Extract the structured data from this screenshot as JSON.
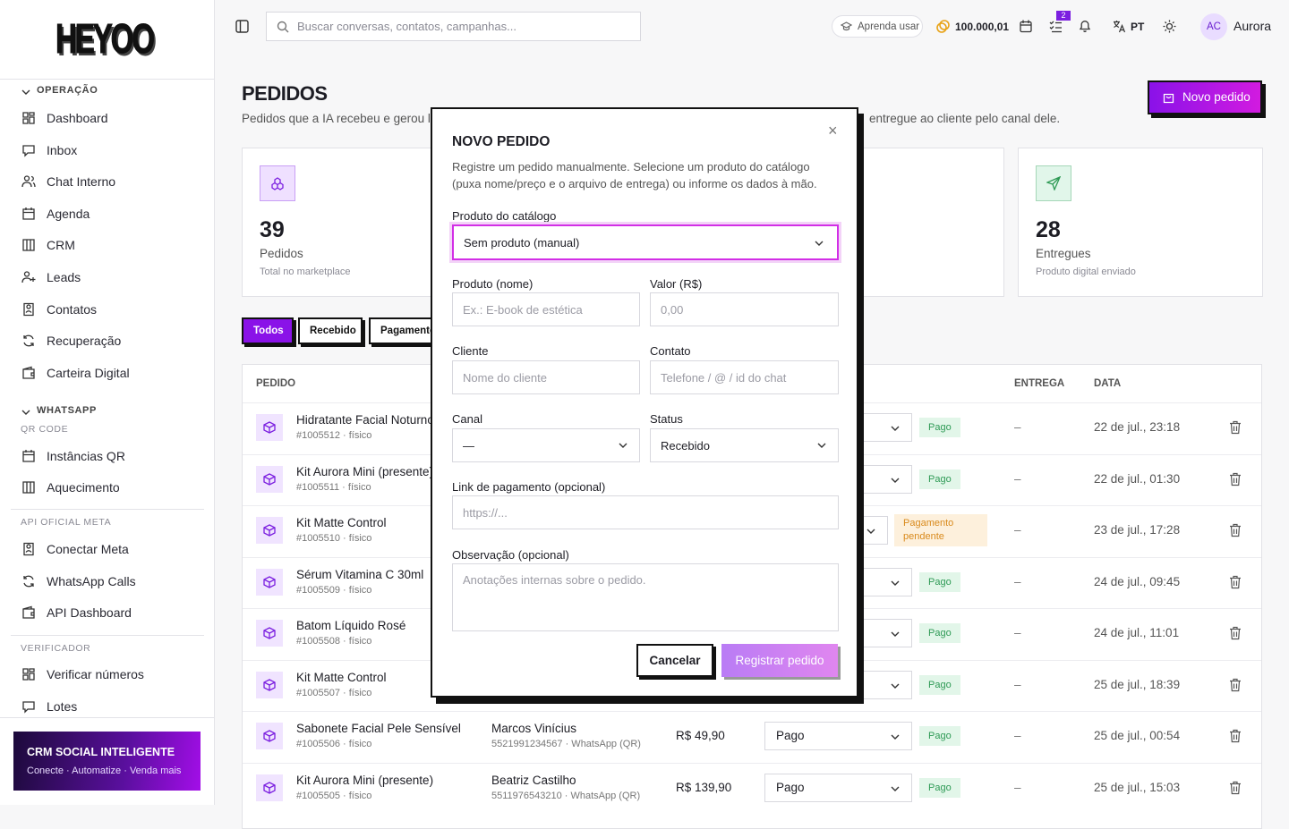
{
  "sidebar": {
    "logo": "HEYOO",
    "groups": [
      {
        "title": "OPERAÇÃO",
        "items": [
          "Dashboard",
          "Inbox",
          "Chat Interno",
          "Agenda",
          "CRM",
          "Leads",
          "Contatos",
          "Recuperação",
          "Carteira Digital"
        ]
      },
      {
        "title": "WHATSAPP",
        "subtitle": "QR CODE",
        "items": [
          "Instâncias QR",
          "Aquecimento"
        ]
      },
      {
        "title": "API OFICIAL META",
        "items": [
          "Conectar Meta",
          "WhatsApp Calls",
          "API Dashboard"
        ]
      },
      {
        "title": "VERIFICADOR",
        "items": [
          "Verificar números",
          "Lotes"
        ]
      }
    ],
    "promo": {
      "title": "CRM SOCIAL INTELIGENTE",
      "text": "Conecte · Automatize · Venda mais"
    }
  },
  "topbar": {
    "search": "Buscar conversas, contatos, campanhas...",
    "learn": "Aprenda usar",
    "credits": "100.000,01",
    "tasks_badge": 2,
    "language": "PT",
    "avatar": "AC",
    "user": "Aurora"
  },
  "page": {
    "title": "PEDIDOS",
    "subtitle_start": "Pedidos que a IA recebeu e gerou link",
    "subtitle_end": "entregue ao cliente pelo canal dele.",
    "new_button": "Novo pedido",
    "stats": [
      {
        "value": 39,
        "label": "Pedidos",
        "note": "Total no marketplace"
      },
      {
        "value": 28,
        "label": "Entregues",
        "note": "Produto digital enviado"
      }
    ],
    "tabs": [
      "Todos",
      "Recebido",
      "Pagamento"
    ],
    "table": {
      "headers": {
        "order": "PEDIDO",
        "delivery": "ENTREGA",
        "date": "DATA"
      },
      "rows": [
        {
          "product": "Hidratante Facial Noturno",
          "meta": "#1005512 · físico",
          "badge": "Pago",
          "delivery": "–",
          "date": "22 de jul., 23:18"
        },
        {
          "product": "Kit Aurora Mini (presente)",
          "meta": "#1005511 · físico",
          "badge": "Pago",
          "delivery": "–",
          "date": "22 de jul., 01:30"
        },
        {
          "product": "Kit Matte Control",
          "meta": "#1005510 · físico",
          "badge": "Pagamento pendente",
          "delivery": "–",
          "date": "23 de jul., 17:28"
        },
        {
          "product": "Sérum Vitamina C 30ml",
          "meta": "#1005509 · físico",
          "badge": "Pago",
          "delivery": "–",
          "date": "24 de jul., 09:45"
        },
        {
          "product": "Batom Líquido Rosé",
          "meta": "#1005508 · físico",
          "badge": "Pago",
          "delivery": "–",
          "date": "24 de jul., 11:01"
        },
        {
          "product": "Kit Matte Control",
          "meta": "#1005507 · físico",
          "badge": "Pago",
          "delivery": "–",
          "date": "25 de jul., 18:39"
        },
        {
          "product": "Sabonete Facial Pele Sensível",
          "meta": "#1005506 · físico",
          "customer": "Marcos Vinícius",
          "contact": "5521991234567 · WhatsApp (QR)",
          "value": "R$ 49,90",
          "status": "Pago",
          "badge": "Pago",
          "delivery": "–",
          "date": "25 de jul., 00:54"
        },
        {
          "product": "Kit Aurora Mini (presente)",
          "meta": "#1005505 · físico",
          "customer": "Beatriz Castilho",
          "contact": "5511976543210 · WhatsApp (QR)",
          "value": "R$ 139,90",
          "status": "Pago",
          "badge": "Pago",
          "delivery": "–",
          "date": "25 de jul., 15:03"
        }
      ]
    }
  },
  "modal": {
    "title": "NOVO PEDIDO",
    "description": "Registre um pedido manualmente. Selecione um produto do catálogo (puxa nome/preço e o arquivo de entrega) ou informe os dados à mão.",
    "catalog_label": "Produto do catálogo",
    "catalog_value": "Sem produto (manual)",
    "name_label": "Produto (nome)",
    "name_placeholder": "Ex.: E-book de estética",
    "price_label": "Valor (R$)",
    "price_placeholder": "0,00",
    "customer_label": "Cliente",
    "customer_placeholder": "Nome do cliente",
    "contact_label": "Contato",
    "contact_placeholder": "Telefone / @ / id do chat",
    "channel_label": "Canal",
    "channel_value": "—",
    "status_label": "Status",
    "status_value": "Recebido",
    "link_label": "Link de pagamento (opcional)",
    "link_placeholder": "https://...",
    "note_label": "Observação (opcional)",
    "note_placeholder": "Anotações internas sobre o pedido.",
    "cancel": "Cancelar",
    "submit": "Registrar pedido"
  }
}
